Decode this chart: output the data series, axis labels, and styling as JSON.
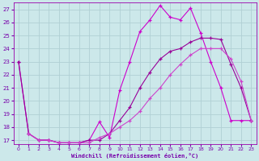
{
  "xlabel": "Windchill (Refroidissement éolien,°C)",
  "background_color": "#cce8ea",
  "grid_color": "#b0d0d4",
  "line_color1": "#cc00cc",
  "line_color2": "#990099",
  "line_color3": "#cc44cc",
  "xlim": [
    -0.5,
    23.5
  ],
  "ylim": [
    16.7,
    27.5
  ],
  "yticks": [
    17,
    18,
    19,
    20,
    21,
    22,
    23,
    24,
    25,
    26,
    27
  ],
  "xticks": [
    0,
    1,
    2,
    3,
    4,
    5,
    6,
    7,
    8,
    9,
    10,
    11,
    12,
    13,
    14,
    15,
    16,
    17,
    18,
    19,
    20,
    21,
    22,
    23
  ],
  "line1_x": [
    0,
    1,
    2,
    3,
    4,
    5,
    6,
    7,
    8,
    9,
    10,
    11,
    12,
    13,
    14,
    15,
    16,
    17,
    18,
    19,
    20,
    21,
    22,
    23
  ],
  "line1_y": [
    23,
    17.5,
    17,
    17,
    16.8,
    16.8,
    16.8,
    17,
    18.4,
    17.2,
    20.8,
    23.0,
    25.3,
    26.2,
    27.3,
    26.4,
    26.2,
    27.1,
    25.2,
    23.0,
    21.0,
    18.5,
    18.5,
    18.5
  ],
  "line2_x": [
    0,
    1,
    2,
    3,
    4,
    5,
    6,
    7,
    8,
    9,
    10,
    11,
    12,
    13,
    14,
    15,
    16,
    17,
    18,
    19,
    20,
    21,
    22,
    23
  ],
  "line2_y": [
    23,
    17.5,
    17,
    17,
    16.8,
    16.8,
    16.8,
    17,
    17,
    17.5,
    18.5,
    19.5,
    21.0,
    22.2,
    23.2,
    23.8,
    24.0,
    24.5,
    24.8,
    24.8,
    24.7,
    22.8,
    21.0,
    18.5
  ],
  "line3_x": [
    1,
    2,
    3,
    4,
    5,
    6,
    7,
    8,
    9,
    10,
    11,
    12,
    13,
    14,
    15,
    16,
    17,
    18,
    19,
    20,
    21,
    22,
    23
  ],
  "line3_y": [
    17.5,
    17,
    17,
    16.8,
    16.8,
    16.8,
    16.8,
    17.2,
    17.5,
    18.0,
    18.5,
    19.2,
    20.2,
    21.0,
    22.0,
    22.8,
    23.5,
    24.0,
    24.0,
    24.0,
    23.2,
    21.5,
    18.5
  ]
}
